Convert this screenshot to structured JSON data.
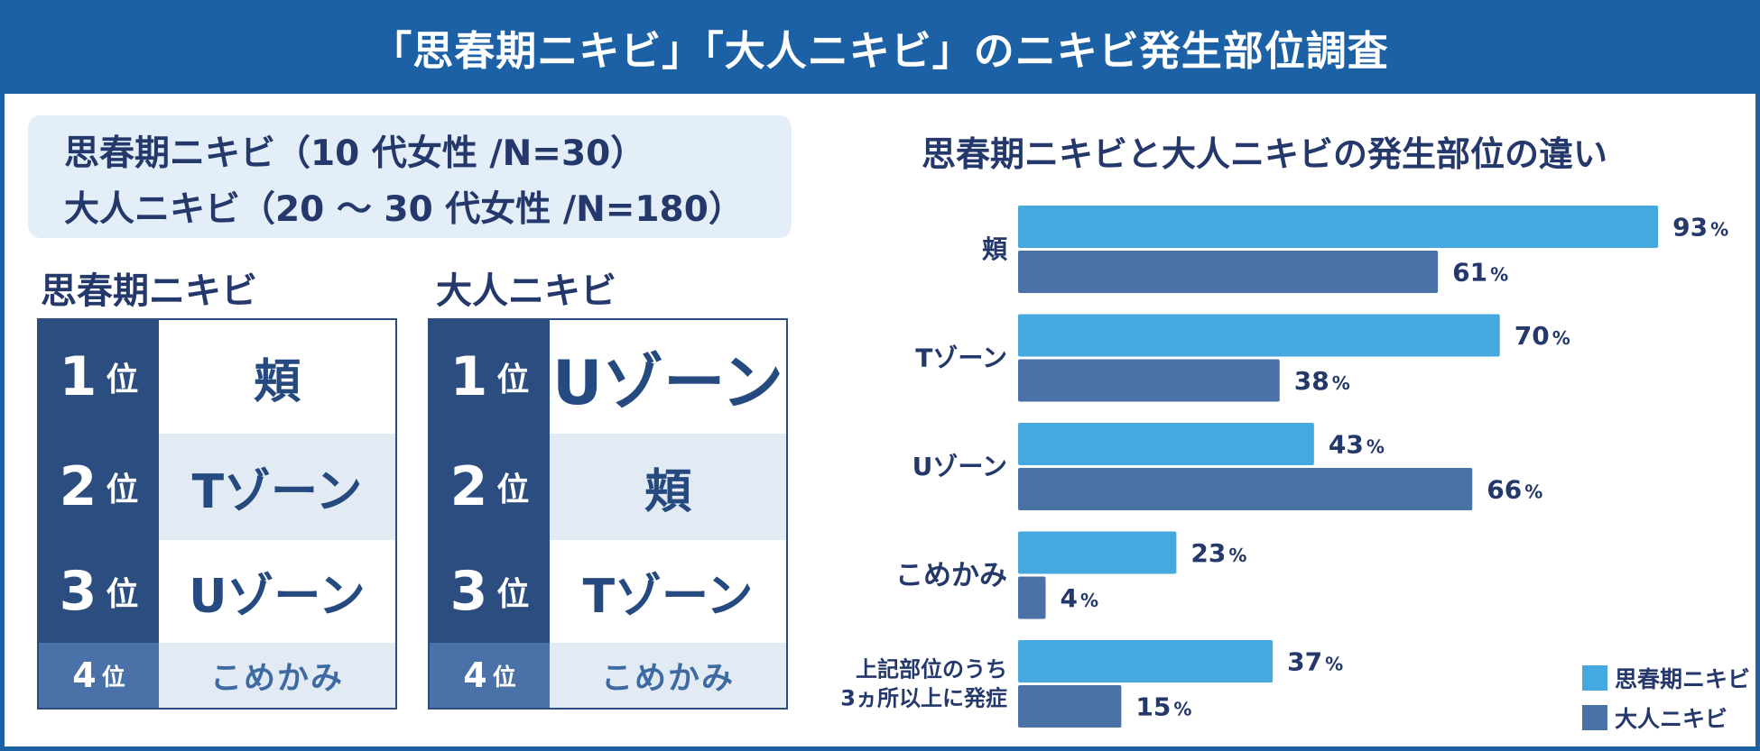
{
  "header": {
    "title": "「思春期ニキビ」「大人ニキビ」のニキビ発生部位調査"
  },
  "info": {
    "line1": "思春期ニキビ（10 代女性 /N=30）",
    "line2": "大人ニキビ（20 ～ 30 代女性 /N=180）"
  },
  "rankings": [
    {
      "title": "思春期ニキビ",
      "rows": [
        {
          "num": "1",
          "suffix": "位",
          "item": "頬"
        },
        {
          "num": "2",
          "suffix": "位",
          "item": "Tゾーン"
        },
        {
          "num": "3",
          "suffix": "位",
          "item": "Uゾーン"
        },
        {
          "num": "4",
          "suffix": "位",
          "item": "こめかみ"
        }
      ]
    },
    {
      "title": "大人ニキビ",
      "rows": [
        {
          "num": "1",
          "suffix": "位",
          "item": "Uゾーン"
        },
        {
          "num": "2",
          "suffix": "位",
          "item": "頬"
        },
        {
          "num": "3",
          "suffix": "位",
          "item": "Tゾーン"
        },
        {
          "num": "4",
          "suffix": "位",
          "item": "こめかみ"
        }
      ]
    }
  ],
  "colors": {
    "header_bg": "#1c60a6",
    "rank_top": "#2b4d80",
    "rank_fourth": "#4a72a8",
    "series_teen": "#45a9e0",
    "series_adult": "#4b72a7"
  },
  "chart_data": {
    "type": "bar",
    "orientation": "horizontal",
    "title": "思春期ニキビと大人ニキビの発生部位の違い",
    "categories": [
      "頬",
      "Tゾーン",
      "Uゾーン",
      "こめかみ",
      "上記部位のうち\n3ヵ所以上に発症"
    ],
    "series": [
      {
        "name": "思春期ニキビ",
        "values": [
          93,
          70,
          43,
          23,
          37
        ]
      },
      {
        "name": "大人ニキビ",
        "values": [
          61,
          38,
          66,
          4,
          15
        ]
      }
    ],
    "unit": "%",
    "xlim": [
      0,
      100
    ],
    "legend": "bottom-right",
    "grid": false
  }
}
